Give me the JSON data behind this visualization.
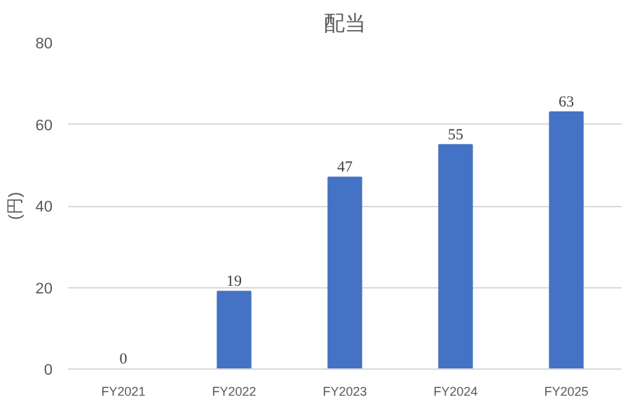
{
  "chart_data": {
    "type": "bar",
    "title": "配当",
    "ylabel": "(円)",
    "categories": [
      "FY2021",
      "FY2022",
      "FY2023",
      "FY2024",
      "FY2025"
    ],
    "values": [
      0,
      19,
      47,
      55,
      63
    ],
    "color": "#4472c4",
    "ylim": [
      0,
      80
    ],
    "yticks": [
      0,
      20,
      40,
      60,
      80
    ],
    "grid": "y",
    "data_labels": true
  }
}
